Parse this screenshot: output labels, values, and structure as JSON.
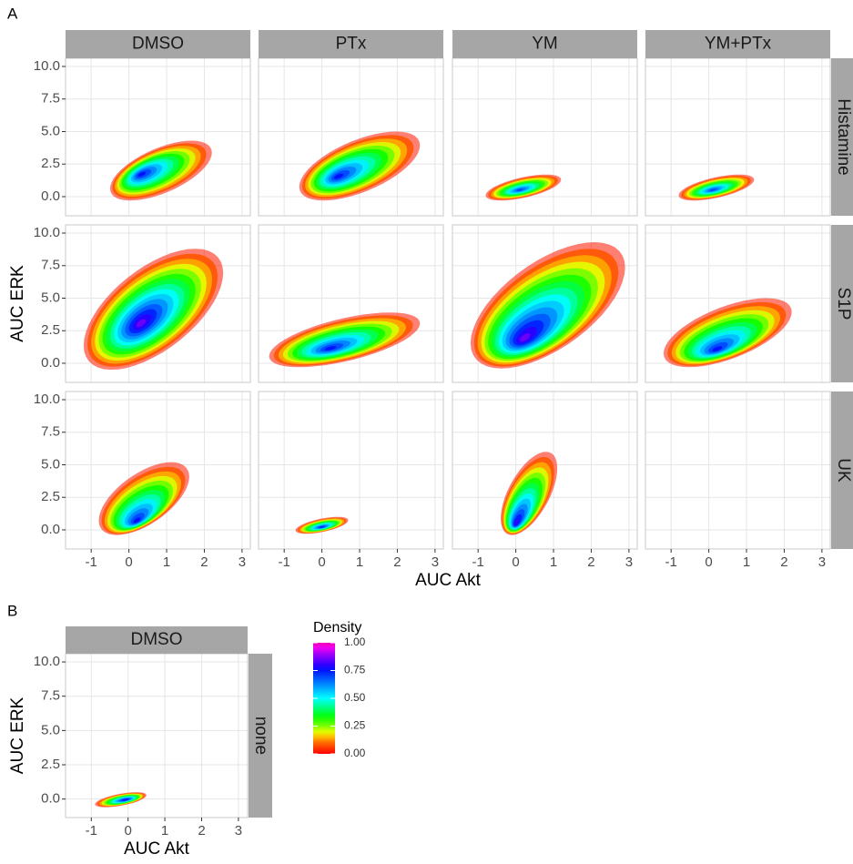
{
  "panel_labels": [
    "A",
    "B"
  ],
  "chart_data": [
    {
      "type": "density",
      "xlabel": "AUC Akt",
      "ylabel": "AUC ERK",
      "columns": [
        "DMSO",
        "PTx",
        "YM",
        "YM+PTx"
      ],
      "rows": [
        "Histamine",
        "S1P",
        "UK"
      ],
      "xlim": [
        -1.68,
        3.22
      ],
      "ylim": [
        -1.47,
        10.63
      ],
      "xticks": [
        -1,
        0,
        1,
        2,
        3
      ],
      "yticks": [
        {
          "value": 0,
          "label": "0.0"
        },
        {
          "value": 2.5,
          "label": "2.5"
        },
        {
          "value": 5,
          "label": "5.0"
        },
        {
          "value": 7.5,
          "label": "7.5"
        },
        {
          "value": 10,
          "label": "10.0"
        }
      ],
      "grid": true,
      "panels": [
        [
          {
            "x": [
              -0.5,
              2.2
            ],
            "y": [
              -0.3,
              4.3
            ],
            "peak": [
              0.3,
              1.7
            ],
            "max_density": 0.8
          },
          {
            "x": [
              -0.6,
              2.6
            ],
            "y": [
              -0.3,
              5.0
            ],
            "peak": [
              0.4,
              1.5
            ],
            "max_density": 0.8
          },
          {
            "x": [
              -0.8,
              1.2
            ],
            "y": [
              -0.3,
              1.7
            ],
            "peak": [
              0.1,
              0.5
            ],
            "max_density": 0.75
          },
          {
            "x": [
              -0.8,
              1.2
            ],
            "y": [
              -0.3,
              1.7
            ],
            "peak": [
              0.1,
              0.5
            ],
            "max_density": 0.75
          }
        ],
        [
          {
            "x": [
              -1.2,
              2.5
            ],
            "y": [
              -0.5,
              8.8
            ],
            "peak": [
              0.3,
              3.0
            ],
            "max_density": 0.9
          },
          {
            "x": [
              -1.4,
              2.6
            ],
            "y": [
              -0.3,
              3.9
            ],
            "peak": [
              0.2,
              1.1
            ],
            "max_density": 0.8
          },
          {
            "x": [
              -1.2,
              2.9
            ],
            "y": [
              -0.4,
              9.3
            ],
            "peak": [
              0.2,
              1.8
            ],
            "max_density": 0.9
          },
          {
            "x": [
              -1.2,
              2.2
            ],
            "y": [
              -0.3,
              5.0
            ],
            "peak": [
              0.2,
              1.0
            ],
            "max_density": 0.8
          }
        ],
        [
          {
            "x": [
              -0.8,
              1.6
            ],
            "y": [
              -0.4,
              5.2
            ],
            "peak": [
              0.2,
              0.6
            ],
            "max_density": 0.8
          },
          {
            "x": [
              -0.7,
              0.7
            ],
            "y": [
              -0.3,
              1.0
            ],
            "peak": [
              0.0,
              0.2
            ],
            "max_density": 0.8
          },
          {
            "x": [
              -0.4,
              1.1
            ],
            "y": [
              -0.4,
              6.0
            ],
            "peak": [
              0.0,
              0.4
            ],
            "max_density": 0.85
          },
          null
        ]
      ]
    },
    {
      "type": "density",
      "xlabel": "AUC Akt",
      "ylabel": "AUC ERK",
      "columns": [
        "DMSO"
      ],
      "rows": [
        "none"
      ],
      "xlim": [
        -1.7,
        3.25
      ],
      "ylim": [
        -1.35,
        10.6
      ],
      "xticks": [
        -1,
        0,
        1,
        2,
        3
      ],
      "yticks": [
        {
          "value": 0,
          "label": "0.0"
        },
        {
          "value": 2.5,
          "label": "2.5"
        },
        {
          "value": 5,
          "label": "5.0"
        },
        {
          "value": 7.5,
          "label": "7.5"
        },
        {
          "value": 10,
          "label": "10.0"
        }
      ],
      "grid": true,
      "panels": [
        [
          {
            "x": [
              -0.9,
              0.5
            ],
            "y": [
              -0.6,
              0.5
            ],
            "peak": [
              -0.05,
              -0.05
            ],
            "max_density": 0.85
          }
        ]
      ],
      "colorbar": {
        "title": "Density",
        "lim": [
          0,
          1
        ],
        "ticks": [
          {
            "value": 0,
            "label": "0.00"
          },
          {
            "value": 0.25,
            "label": "0.25"
          },
          {
            "value": 0.5,
            "label": "0.50"
          },
          {
            "value": 0.75,
            "label": "0.75"
          },
          {
            "value": 1,
            "label": "1.00"
          }
        ]
      }
    }
  ]
}
